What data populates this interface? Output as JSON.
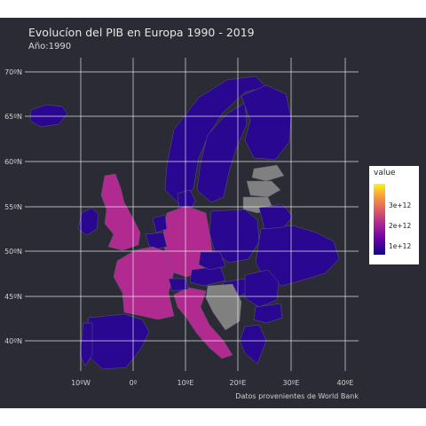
{
  "title": "Evolucíon del PIB en Europa 1990 - 2019",
  "subtitle": "Año:1990",
  "caption": "Datos provenientes de World Bank",
  "colors": {
    "panel": "#2b2b35",
    "na": "#808080",
    "low": "#0d0887",
    "mid": "#b12a90",
    "high": "#f0f921"
  },
  "chart_data": {
    "type": "map",
    "y_ticks": [
      "40ºN",
      "45ºN",
      "50ºN",
      "55ºN",
      "60ºN",
      "65ºN",
      "70ºN"
    ],
    "x_ticks": [
      "10ºW",
      "0º",
      "10ºE",
      "20ºE",
      "30ºE",
      "40ºE"
    ],
    "legend": {
      "title": "value",
      "ticks": [
        "3e+12",
        "2e+12",
        "1e+12"
      ]
    },
    "regions": [
      {
        "name": "Iceland",
        "tone": "low"
      },
      {
        "name": "Ireland",
        "tone": "low"
      },
      {
        "name": "United Kingdom",
        "tone": "mid"
      },
      {
        "name": "Norway",
        "tone": "low"
      },
      {
        "name": "Sweden",
        "tone": "low"
      },
      {
        "name": "Finland",
        "tone": "low"
      },
      {
        "name": "Estonia",
        "tone": "na"
      },
      {
        "name": "Latvia",
        "tone": "na"
      },
      {
        "name": "Lithuania",
        "tone": "na"
      },
      {
        "name": "Denmark",
        "tone": "low"
      },
      {
        "name": "Germany",
        "tone": "mid"
      },
      {
        "name": "Netherlands",
        "tone": "low"
      },
      {
        "name": "Belgium",
        "tone": "low"
      },
      {
        "name": "France",
        "tone": "mid"
      },
      {
        "name": "Spain",
        "tone": "low"
      },
      {
        "name": "Portugal",
        "tone": "low"
      },
      {
        "name": "Italy",
        "tone": "mid"
      },
      {
        "name": "Switzerland",
        "tone": "low"
      },
      {
        "name": "Austria",
        "tone": "low"
      },
      {
        "name": "Poland",
        "tone": "low"
      },
      {
        "name": "Czechia",
        "tone": "low"
      },
      {
        "name": "Hungary",
        "tone": "low"
      },
      {
        "name": "Ukraine",
        "tone": "low"
      },
      {
        "name": "Belarus",
        "tone": "low"
      },
      {
        "name": "Romania",
        "tone": "low"
      },
      {
        "name": "Bulgaria",
        "tone": "low"
      },
      {
        "name": "Greece",
        "tone": "low"
      },
      {
        "name": "Balkans",
        "tone": "na"
      }
    ]
  }
}
